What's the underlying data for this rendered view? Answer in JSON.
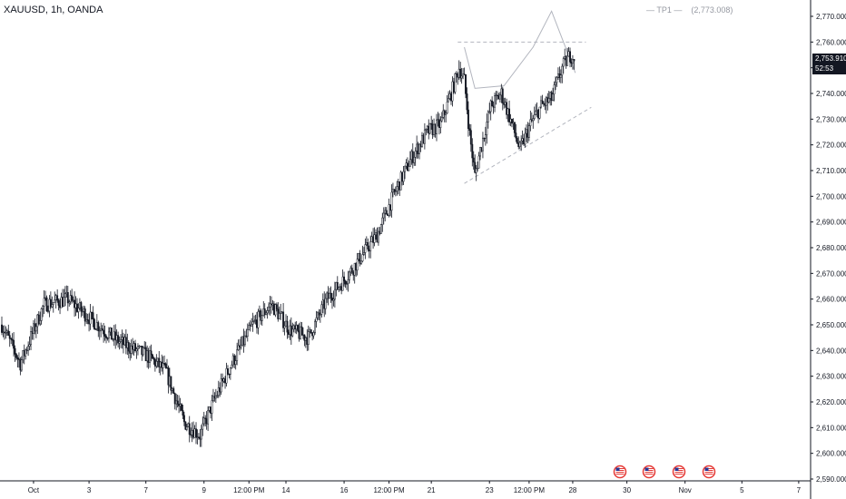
{
  "header": {
    "symbol_title": "XAUUSD, 1h, OANDA",
    "tp_label": "— TP1 —    (2,773.008)"
  },
  "price_badge": {
    "last_price": "2,753.910",
    "countdown": "52:53",
    "color": "#131722"
  },
  "colors": {
    "candles": "#131722",
    "drawings": "#b2b5be",
    "axis_text": "#131722",
    "axis_line": "#131722",
    "flag_red": "#e53935",
    "flag_blue": "#283593"
  },
  "event_icons": [
    "us-flag-icon",
    "us-flag-icon",
    "us-flag-icon",
    "us-flag-icon"
  ],
  "chart_data": {
    "type": "candlestick",
    "title": "XAUUSD, 1h, OANDA",
    "y_axis": {
      "range": [
        2590,
        2776
      ],
      "ticks": [
        "2,590.000",
        "2,600.000",
        "2,610.000",
        "2,620.000",
        "2,630.000",
        "2,640.000",
        "2,650.000",
        "2,660.000",
        "2,670.000",
        "2,680.000",
        "2,690.000",
        "2,700.000",
        "2,710.000",
        "2,720.000",
        "2,730.000",
        "2,740.000",
        "2,750.000",
        "2,760.000",
        "2,770.000"
      ]
    },
    "x_axis": {
      "ticks": [
        "Oct",
        "3",
        "7",
        "9",
        "12:00 PM",
        "14",
        "16",
        "12:00 PM",
        "21",
        "23",
        "12:00 PM",
        "28",
        "30",
        "Nov",
        "5",
        "7"
      ]
    },
    "path": [
      [
        0,
        2650
      ],
      [
        14,
        2635
      ],
      [
        32,
        2658
      ],
      [
        50,
        2660
      ],
      [
        68,
        2652
      ],
      [
        84,
        2645
      ],
      [
        94,
        2642
      ],
      [
        110,
        2638
      ],
      [
        124,
        2632
      ],
      [
        138,
        2612
      ],
      [
        150,
        2607
      ],
      [
        160,
        2620
      ],
      [
        174,
        2635
      ],
      [
        190,
        2650
      ],
      [
        204,
        2658
      ],
      [
        218,
        2648
      ],
      [
        232,
        2645
      ],
      [
        246,
        2660
      ],
      [
        260,
        2668
      ],
      [
        274,
        2678
      ],
      [
        284,
        2685
      ],
      [
        296,
        2700
      ],
      [
        310,
        2715
      ],
      [
        322,
        2725
      ],
      [
        332,
        2728
      ],
      [
        340,
        2740
      ],
      [
        346,
        2750
      ],
      [
        350,
        2745
      ],
      [
        354,
        2724
      ],
      [
        358,
        2708
      ],
      [
        362,
        2718
      ],
      [
        370,
        2735
      ],
      [
        378,
        2740
      ],
      [
        386,
        2728
      ],
      [
        392,
        2718
      ],
      [
        400,
        2728
      ],
      [
        408,
        2735
      ],
      [
        416,
        2738
      ],
      [
        424,
        2750
      ],
      [
        430,
        2755
      ],
      [
        434,
        2754
      ]
    ],
    "annotations": {
      "resistance_level": 2760,
      "tp1": 2773.008,
      "support_trendline": [
        [
          350,
          2705
        ],
        [
          440,
          2733
        ]
      ],
      "wedge_lines": [
        [
          [
            350,
            2758
          ],
          [
            358,
            2742
          ],
          [
            380,
            2743
          ],
          [
            402,
            2758
          ],
          [
            416,
            2772
          ],
          [
            434,
            2748
          ]
        ]
      ]
    },
    "last_price": 2753.91
  }
}
